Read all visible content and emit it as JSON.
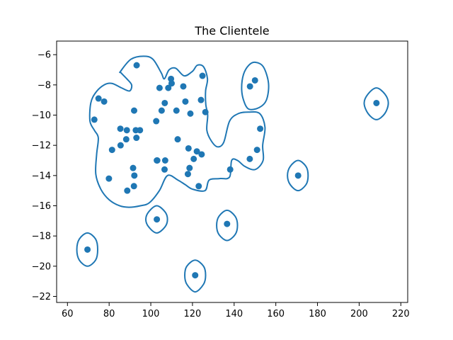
{
  "chart_data": {
    "type": "scatter",
    "title": "The Clientele",
    "xlabel": "",
    "ylabel": "",
    "xlim": [
      54.8,
      223.3
    ],
    "ylim": [
      -22.4,
      -5.1
    ],
    "xticks": [
      60,
      80,
      100,
      120,
      140,
      160,
      180,
      200,
      220
    ],
    "yticks": [
      -22,
      -20,
      -18,
      -16,
      -14,
      -12,
      -10,
      -8,
      -6
    ],
    "grid": false,
    "point_color": "#1f77b4",
    "contour_color": "#1f77b4",
    "points": [
      [
        93.2,
        -6.7
      ],
      [
        109.7,
        -7.6
      ],
      [
        124.8,
        -7.4
      ],
      [
        150.0,
        -7.7
      ],
      [
        147.6,
        -8.1
      ],
      [
        104.2,
        -8.2
      ],
      [
        108.4,
        -8.2
      ],
      [
        110.0,
        -7.9
      ],
      [
        115.6,
        -8.1
      ],
      [
        74.9,
        -8.9
      ],
      [
        77.6,
        -9.1
      ],
      [
        106.7,
        -9.2
      ],
      [
        116.6,
        -9.1
      ],
      [
        124.1,
        -9.0
      ],
      [
        208.3,
        -9.2
      ],
      [
        92.0,
        -9.7
      ],
      [
        105.2,
        -9.7
      ],
      [
        112.3,
        -9.7
      ],
      [
        119.0,
        -9.9
      ],
      [
        126.2,
        -9.8
      ],
      [
        72.9,
        -10.3
      ],
      [
        102.6,
        -10.4
      ],
      [
        152.5,
        -10.9
      ],
      [
        85.4,
        -10.9
      ],
      [
        88.5,
        -11.0
      ],
      [
        92.8,
        -11.0
      ],
      [
        94.8,
        -11.0
      ],
      [
        88.2,
        -11.6
      ],
      [
        93.1,
        -11.5
      ],
      [
        112.9,
        -11.6
      ],
      [
        85.5,
        -12.0
      ],
      [
        81.4,
        -12.3
      ],
      [
        118.1,
        -12.2
      ],
      [
        122.1,
        -12.4
      ],
      [
        124.4,
        -12.6
      ],
      [
        151.0,
        -12.3
      ],
      [
        120.6,
        -12.9
      ],
      [
        147.5,
        -12.9
      ],
      [
        102.9,
        -13.0
      ],
      [
        103.1,
        -13.0
      ],
      [
        106.9,
        -13.0
      ],
      [
        91.5,
        -13.5
      ],
      [
        106.6,
        -13.6
      ],
      [
        118.6,
        -13.5
      ],
      [
        138.1,
        -13.6
      ],
      [
        92.1,
        -14.0
      ],
      [
        117.8,
        -13.9
      ],
      [
        170.7,
        -14.0
      ],
      [
        79.9,
        -14.2
      ],
      [
        91.9,
        -14.7
      ],
      [
        123.0,
        -14.7
      ],
      [
        88.7,
        -15.0
      ],
      [
        102.9,
        -16.9
      ],
      [
        136.6,
        -17.2
      ],
      [
        69.6,
        -18.9
      ],
      [
        121.3,
        -20.6
      ]
    ],
    "contours": [
      [
        [
          85.5,
          -7.1
        ],
        [
          90.5,
          -6.3
        ],
        [
          96.5,
          -6.1
        ],
        [
          101,
          -6.3
        ],
        [
          105,
          -7.2
        ],
        [
          106.5,
          -7.6
        ],
        [
          108.8,
          -7.0
        ],
        [
          112,
          -6.9
        ],
        [
          116,
          -7.4
        ],
        [
          120,
          -7.1
        ],
        [
          122.3,
          -6.7
        ],
        [
          125.3,
          -6.8
        ],
        [
          127.2,
          -7.6
        ],
        [
          126.3,
          -8.4
        ],
        [
          126.4,
          -9.3
        ],
        [
          127.3,
          -10.0
        ],
        [
          126.9,
          -11.0
        ],
        [
          129.0,
          -11.7
        ],
        [
          132.0,
          -12.1
        ],
        [
          135.0,
          -11.8
        ],
        [
          137.8,
          -10.4
        ],
        [
          142.0,
          -9.9
        ],
        [
          147.0,
          -9.8
        ],
        [
          152.3,
          -9.9
        ],
        [
          154.8,
          -10.8
        ],
        [
          153.7,
          -12.0
        ],
        [
          153.9,
          -13.0
        ],
        [
          150.1,
          -13.6
        ],
        [
          145.2,
          -13.4
        ],
        [
          141.6,
          -13.0
        ],
        [
          138.8,
          -13.0
        ],
        [
          137.8,
          -14.1
        ],
        [
          133.0,
          -14.2
        ],
        [
          128.0,
          -14.3
        ],
        [
          126.0,
          -15.0
        ],
        [
          120.0,
          -14.9
        ],
        [
          116.5,
          -14.6
        ],
        [
          113.0,
          -14.3
        ],
        [
          108.0,
          -14.0
        ],
        [
          104.1,
          -15.0
        ],
        [
          99.3,
          -15.8
        ],
        [
          95.0,
          -16.0
        ],
        [
          89.5,
          -16.1
        ],
        [
          85.0,
          -16.0
        ],
        [
          80.0,
          -15.6
        ],
        [
          76.0,
          -14.9
        ],
        [
          73.6,
          -13.9
        ],
        [
          74.0,
          -12.6
        ],
        [
          74.8,
          -11.5
        ],
        [
          72.9,
          -11.0
        ],
        [
          70.8,
          -10.4
        ],
        [
          71.2,
          -9.2
        ],
        [
          73.6,
          -8.5
        ],
        [
          77.6,
          -8.0
        ],
        [
          81.3,
          -7.9
        ],
        [
          86.0,
          -8.2
        ],
        [
          89.8,
          -8.4
        ],
        [
          90.8,
          -8.0
        ],
        [
          88.5,
          -7.6
        ],
        [
          85.7,
          -7.2
        ],
        [
          85.5,
          -7.1
        ]
      ],
      [
        [
          150.0,
          -6.5
        ],
        [
          154.0,
          -6.8
        ],
        [
          156.5,
          -7.9
        ],
        [
          155.5,
          -9.0
        ],
        [
          152.0,
          -9.5
        ],
        [
          147.0,
          -9.6
        ],
        [
          144.5,
          -9.0
        ],
        [
          143.6,
          -8.2
        ],
        [
          144.5,
          -7.3
        ],
        [
          147.0,
          -6.7
        ],
        [
          150.0,
          -6.5
        ]
      ],
      [
        [
          208.3,
          -8.2
        ],
        [
          212.3,
          -8.6
        ],
        [
          214.0,
          -9.2
        ],
        [
          212.3,
          -9.9
        ],
        [
          208.3,
          -10.3
        ],
        [
          204.3,
          -9.9
        ],
        [
          202.4,
          -9.2
        ],
        [
          204.3,
          -8.6
        ],
        [
          208.3,
          -8.2
        ]
      ],
      [
        [
          170.7,
          -13.0
        ],
        [
          174.5,
          -13.4
        ],
        [
          175.5,
          -14.0
        ],
        [
          174.5,
          -14.6
        ],
        [
          170.7,
          -15.0
        ],
        [
          166.9,
          -14.6
        ],
        [
          165.6,
          -14.0
        ],
        [
          166.9,
          -13.4
        ],
        [
          170.7,
          -13.0
        ]
      ],
      [
        [
          102.9,
          -16.0
        ],
        [
          106.8,
          -16.4
        ],
        [
          108.0,
          -16.9
        ],
        [
          106.8,
          -17.4
        ],
        [
          102.9,
          -17.8
        ],
        [
          99.0,
          -17.4
        ],
        [
          97.6,
          -16.9
        ],
        [
          99.0,
          -16.4
        ],
        [
          102.9,
          -16.0
        ]
      ],
      [
        [
          136.6,
          -16.3
        ],
        [
          140.5,
          -16.7
        ],
        [
          141.6,
          -17.3
        ],
        [
          140.5,
          -17.9
        ],
        [
          136.6,
          -18.3
        ],
        [
          132.7,
          -17.9
        ],
        [
          131.6,
          -17.3
        ],
        [
          132.7,
          -16.7
        ],
        [
          136.6,
          -16.3
        ]
      ],
      [
        [
          69.6,
          -17.8
        ],
        [
          73.5,
          -18.2
        ],
        [
          74.5,
          -18.9
        ],
        [
          73.5,
          -19.6
        ],
        [
          69.6,
          -20.0
        ],
        [
          65.7,
          -19.6
        ],
        [
          64.5,
          -18.9
        ],
        [
          65.7,
          -18.2
        ],
        [
          69.6,
          -17.8
        ]
      ],
      [
        [
          121.3,
          -19.6
        ],
        [
          125.3,
          -20.0
        ],
        [
          126.3,
          -20.6
        ],
        [
          125.3,
          -21.2
        ],
        [
          121.3,
          -21.7
        ],
        [
          117.3,
          -21.2
        ],
        [
          116.3,
          -20.6
        ],
        [
          117.3,
          -20.0
        ],
        [
          121.3,
          -19.6
        ]
      ]
    ]
  }
}
